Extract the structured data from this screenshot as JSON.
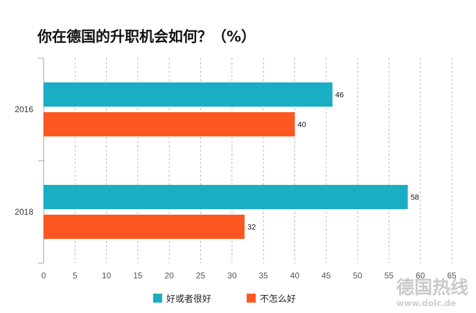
{
  "chart_data": {
    "type": "bar",
    "orientation": "horizontal",
    "title": "你在德国的升职机会如何？（%）",
    "categories": [
      "2016",
      "2018"
    ],
    "series": [
      {
        "name": "好或者很好",
        "values": [
          46,
          58
        ],
        "color": "#1aaec5"
      },
      {
        "name": "不怎么好",
        "values": [
          40,
          32
        ],
        "color": "#ff5722"
      }
    ],
    "xlim": [
      0,
      65
    ],
    "xticks": [
      0,
      5,
      10,
      15,
      20,
      25,
      30,
      35,
      40,
      45,
      50,
      55,
      60,
      65
    ],
    "grid": "vertical dashed",
    "legend_position": "bottom-center",
    "data_labels": true
  },
  "watermark": {
    "logo_text": "德国热线",
    "url": "www.dolc.de"
  }
}
